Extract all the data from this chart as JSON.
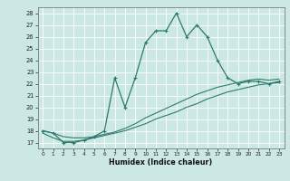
{
  "xlabel": "Humidex (Indice chaleur)",
  "bg_color": "#cce8e4",
  "grid_color": "#ffffff",
  "line_color": "#2d7a6e",
  "xlim": [
    -0.5,
    23.5
  ],
  "ylim": [
    16.5,
    28.5
  ],
  "xticks": [
    0,
    1,
    2,
    3,
    4,
    5,
    6,
    7,
    8,
    9,
    10,
    11,
    12,
    13,
    14,
    15,
    16,
    17,
    18,
    19,
    20,
    21,
    22,
    23
  ],
  "yticks": [
    17,
    18,
    19,
    20,
    21,
    22,
    23,
    24,
    25,
    26,
    27,
    28
  ],
  "curve1_x": [
    0,
    1,
    2,
    3,
    4,
    5,
    6,
    7,
    8,
    9,
    10,
    11,
    12,
    13,
    14,
    15,
    16,
    17,
    18,
    19,
    20,
    21,
    22,
    23
  ],
  "curve1_y": [
    18.0,
    17.8,
    17.0,
    17.0,
    17.2,
    17.5,
    18.0,
    22.5,
    20.0,
    22.5,
    25.5,
    26.5,
    26.5,
    28.0,
    26.0,
    27.0,
    26.0,
    24.0,
    22.5,
    22.0,
    22.2,
    22.2,
    22.0,
    22.2
  ],
  "curve2_x": [
    0,
    1,
    2,
    3,
    4,
    5,
    6,
    7,
    8,
    9,
    10,
    11,
    12,
    13,
    14,
    15,
    16,
    17,
    18,
    19,
    20,
    21,
    22,
    23
  ],
  "curve2_y": [
    17.8,
    17.4,
    17.1,
    17.1,
    17.2,
    17.4,
    17.6,
    17.8,
    18.0,
    18.3,
    18.6,
    19.0,
    19.3,
    19.6,
    20.0,
    20.3,
    20.7,
    21.0,
    21.3,
    21.5,
    21.7,
    21.9,
    22.0,
    22.1
  ],
  "curve3_x": [
    0,
    1,
    2,
    3,
    4,
    5,
    6,
    7,
    8,
    9,
    10,
    11,
    12,
    13,
    14,
    15,
    16,
    17,
    18,
    19,
    20,
    21,
    22,
    23
  ],
  "curve3_y": [
    18.0,
    17.8,
    17.5,
    17.4,
    17.4,
    17.5,
    17.7,
    17.9,
    18.2,
    18.6,
    19.1,
    19.5,
    19.9,
    20.3,
    20.7,
    21.1,
    21.4,
    21.7,
    21.9,
    22.1,
    22.3,
    22.4,
    22.3,
    22.4
  ]
}
